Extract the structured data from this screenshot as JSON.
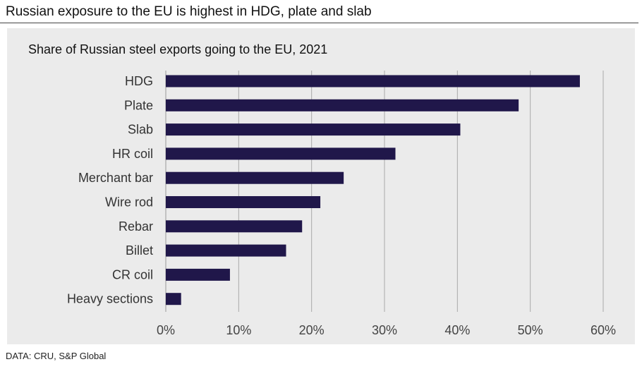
{
  "title": "Russian exposure to the EU is highest in HDG, plate and slab",
  "source": "DATA: CRU, S&P Global",
  "colors": {
    "bar": "#20174a",
    "background": "#ebebeb",
    "grid": "#aaaaaa"
  },
  "chart_data": {
    "type": "bar",
    "orientation": "horizontal",
    "title": "Share of Russian steel exports going to the EU, 2021",
    "categories": [
      "HDG",
      "Plate",
      "Slab",
      "HR coil",
      "Merchant bar",
      "Wire rod",
      "Rebar",
      "Billet",
      "CR coil",
      "Heavy sections"
    ],
    "values": [
      56.8,
      48.4,
      40.4,
      31.5,
      24.4,
      21.2,
      18.7,
      16.5,
      8.8,
      2.1
    ],
    "unit": "%",
    "xlim": [
      0,
      60
    ],
    "xticks": [
      "0%",
      "10%",
      "20%",
      "30%",
      "40%",
      "50%",
      "60%"
    ],
    "grid": "vertical",
    "legend": "none"
  }
}
